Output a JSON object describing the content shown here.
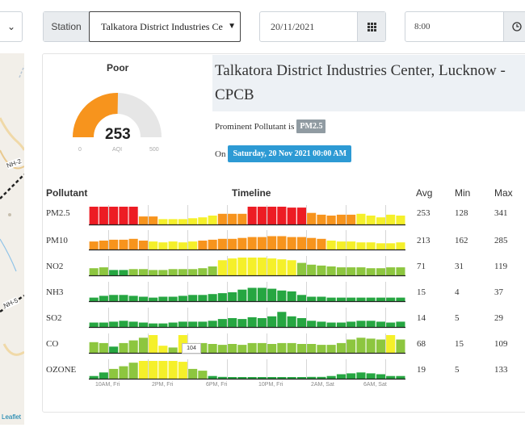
{
  "filters": {
    "station_label": "Station",
    "station_value": "Talkatora District Industries Ce",
    "date_value": "20/11/2021",
    "time_value": "8:00"
  },
  "map": {
    "attribution": "Leaflet",
    "road_labels": [
      "NH-2",
      "NH-5"
    ]
  },
  "gauge": {
    "category": "Poor",
    "value": "253",
    "aqi": 253,
    "min_label": "0",
    "mid_label": "AQI",
    "max_label": "500",
    "max": 500,
    "fill_color": "#f7941d",
    "track_color": "#e6e6e6"
  },
  "station": {
    "name": "Talkatora District Industries Center, Lucknow - CPCB",
    "prominent_label": "Prominent Pollutant is",
    "prominent_value": "PM2.5",
    "on_label": "On",
    "timestamp": "Saturday, 20 Nov 2021 00:00 AM"
  },
  "table": {
    "headers": {
      "pollutant": "Pollutant",
      "timeline": "Timeline",
      "avg": "Avg",
      "min": "Min",
      "max": "Max"
    },
    "rows": [
      {
        "name": "PM2.5",
        "avg": "253",
        "min": "128",
        "max": "341",
        "bars": [
          5,
          5,
          5,
          5,
          5,
          4,
          4,
          3,
          3,
          3,
          3,
          3,
          3,
          4,
          4,
          4,
          5,
          5,
          5,
          5,
          5,
          5,
          4,
          4,
          4,
          4,
          4,
          3,
          3,
          3,
          3,
          3
        ],
        "heights": [
          1,
          1,
          1,
          1,
          1,
          0.45,
          0.45,
          0.3,
          0.3,
          0.3,
          0.35,
          0.4,
          0.5,
          0.6,
          0.6,
          0.6,
          1,
          1,
          1,
          1,
          0.95,
          0.95,
          0.65,
          0.55,
          0.5,
          0.55,
          0.55,
          0.6,
          0.5,
          0.4,
          0.55,
          0.5
        ]
      },
      {
        "name": "PM10",
        "avg": "213",
        "min": "162",
        "max": "285",
        "bars": [
          4,
          4,
          4,
          4,
          4,
          4,
          3,
          3,
          3,
          3,
          3,
          4,
          4,
          4,
          4,
          4,
          4,
          4,
          4,
          4,
          4,
          4,
          4,
          4,
          3,
          3,
          3,
          3,
          3,
          3,
          3,
          3
        ],
        "heights": [
          0.45,
          0.5,
          0.55,
          0.55,
          0.6,
          0.5,
          0.45,
          0.4,
          0.45,
          0.4,
          0.45,
          0.5,
          0.55,
          0.6,
          0.6,
          0.65,
          0.7,
          0.7,
          0.75,
          0.75,
          0.7,
          0.7,
          0.65,
          0.6,
          0.5,
          0.45,
          0.45,
          0.4,
          0.4,
          0.35,
          0.35,
          0.4
        ]
      },
      {
        "name": "NO2",
        "avg": "71",
        "min": "31",
        "max": "119",
        "bars": [
          2,
          2,
          1,
          1,
          2,
          2,
          2,
          2,
          2,
          2,
          2,
          2,
          2,
          3,
          3,
          3,
          3,
          3,
          3,
          3,
          3,
          2,
          2,
          2,
          2,
          2,
          2,
          2,
          2,
          2,
          2,
          2
        ],
        "heights": [
          0.4,
          0.45,
          0.3,
          0.3,
          0.35,
          0.35,
          0.3,
          0.3,
          0.35,
          0.35,
          0.35,
          0.4,
          0.5,
          0.85,
          0.95,
          1,
          1,
          1,
          0.95,
          0.9,
          0.85,
          0.7,
          0.6,
          0.55,
          0.5,
          0.45,
          0.45,
          0.45,
          0.4,
          0.4,
          0.45,
          0.45
        ]
      },
      {
        "name": "NH3",
        "avg": "15",
        "min": "4",
        "max": "37",
        "bars": [
          1,
          1,
          1,
          1,
          1,
          1,
          1,
          1,
          1,
          1,
          1,
          1,
          1,
          1,
          1,
          1,
          1,
          1,
          1,
          1,
          1,
          1,
          1,
          1,
          1,
          1,
          1,
          1,
          1,
          1,
          1,
          1
        ],
        "heights": [
          0.2,
          0.3,
          0.35,
          0.35,
          0.3,
          0.25,
          0.2,
          0.25,
          0.25,
          0.3,
          0.35,
          0.35,
          0.4,
          0.45,
          0.5,
          0.65,
          0.75,
          0.75,
          0.7,
          0.6,
          0.55,
          0.35,
          0.25,
          0.25,
          0.2,
          0.2,
          0.2,
          0.2,
          0.2,
          0.2,
          0.2,
          0.2
        ]
      },
      {
        "name": "SO2",
        "avg": "14",
        "min": "5",
        "max": "29",
        "bars": [
          1,
          1,
          1,
          1,
          1,
          1,
          1,
          1,
          1,
          1,
          1,
          1,
          1,
          1,
          1,
          1,
          1,
          1,
          1,
          1,
          1,
          1,
          1,
          1,
          1,
          1,
          1,
          1,
          1,
          1,
          1,
          1
        ],
        "heights": [
          0.25,
          0.25,
          0.3,
          0.35,
          0.3,
          0.25,
          0.2,
          0.2,
          0.25,
          0.3,
          0.3,
          0.3,
          0.35,
          0.45,
          0.5,
          0.45,
          0.55,
          0.5,
          0.6,
          0.85,
          0.6,
          0.5,
          0.35,
          0.3,
          0.25,
          0.25,
          0.3,
          0.35,
          0.35,
          0.3,
          0.25,
          0.3
        ]
      },
      {
        "name": "CO",
        "avg": "68",
        "min": "15",
        "max": "109",
        "bars": [
          2,
          2,
          1,
          2,
          2,
          2,
          3,
          3,
          2,
          3,
          2,
          2,
          2,
          2,
          2,
          2,
          2,
          2,
          2,
          2,
          2,
          2,
          2,
          2,
          2,
          2,
          2,
          2,
          2,
          2,
          3,
          2
        ],
        "heights": [
          0.6,
          0.55,
          0.35,
          0.55,
          0.7,
          0.85,
          1,
          0.4,
          0.3,
          1,
          0.55,
          0.55,
          0.5,
          0.45,
          0.5,
          0.45,
          0.55,
          0.55,
          0.5,
          0.55,
          0.55,
          0.5,
          0.5,
          0.45,
          0.45,
          0.55,
          0.75,
          0.85,
          0.8,
          0.75,
          1,
          0.75
        ]
      },
      {
        "name": "OZONE",
        "avg": "19",
        "min": "5",
        "max": "133",
        "bars": [
          1,
          1,
          2,
          2,
          2,
          3,
          3,
          3,
          3,
          3,
          2,
          2,
          1,
          1,
          1,
          1,
          1,
          1,
          1,
          1,
          1,
          1,
          1,
          1,
          1,
          1,
          1,
          1,
          1,
          1,
          1,
          1
        ],
        "heights": [
          0.15,
          0.35,
          0.55,
          0.7,
          0.9,
          1,
          1,
          1,
          1,
          0.95,
          0.55,
          0.45,
          0.15,
          0.1,
          0.05,
          0.05,
          0.05,
          0.05,
          0.05,
          0.05,
          0.05,
          0.05,
          0.1,
          0.1,
          0.15,
          0.25,
          0.3,
          0.35,
          0.3,
          0.25,
          0.15,
          0.15
        ]
      }
    ],
    "color_scale": {
      "1": "#26a641",
      "2": "#8dc63f",
      "3": "#f5f02a",
      "4": "#f7941d",
      "5": "#ed1c24"
    },
    "tooltip": "104",
    "x_labels": [
      "10AM, Fri",
      "2PM, Fri",
      "6PM, Fri",
      "10PM, Fri",
      "2AM, Sat",
      "6AM, Sat"
    ]
  }
}
